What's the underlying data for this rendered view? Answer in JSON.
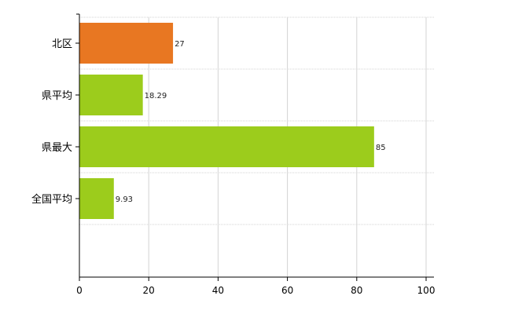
{
  "chart_data": {
    "type": "bar",
    "orientation": "horizontal",
    "categories": [
      "北区",
      "県平均",
      "県最大",
      "全国平均"
    ],
    "values": [
      27,
      18.29,
      85,
      9.93
    ],
    "value_labels": [
      "27",
      "18.29",
      "85",
      "9.93"
    ],
    "bar_colors": [
      "#e87722",
      "#9ccc1c",
      "#9ccc1c",
      "#9ccc1c"
    ],
    "xlim": [
      0,
      100
    ],
    "x_ticks": [
      0,
      20,
      40,
      60,
      80,
      100
    ],
    "grid": true,
    "gridline_color": "#d3d3d3",
    "axis_color": "#000000"
  }
}
